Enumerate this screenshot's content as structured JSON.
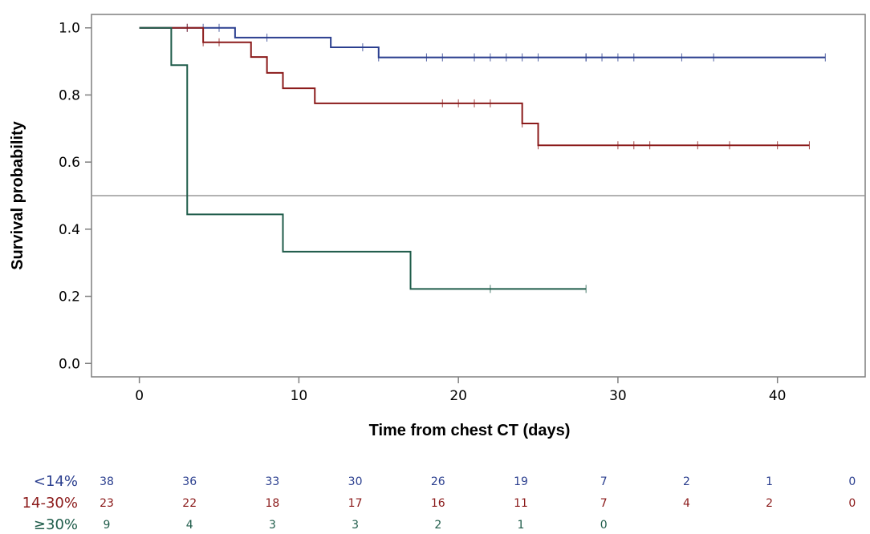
{
  "chart_data": {
    "type": "line",
    "subtype": "kaplan-meier",
    "xlabel": "Time from chest CT (days)",
    "ylabel": "Survival probability",
    "xlim": [
      -3,
      45.5
    ],
    "ylim": [
      -0.04,
      1.04
    ],
    "xticks": [
      0,
      10,
      20,
      30,
      40
    ],
    "xtick_labels": [
      "0",
      "10",
      "20",
      "30",
      "40"
    ],
    "yticks": [
      0.0,
      0.2,
      0.4,
      0.6,
      0.8,
      1.0
    ],
    "ytick_labels": [
      "0.0",
      "0.2",
      "0.4",
      "0.6",
      "0.8",
      "1.0"
    ],
    "reference_line_y": 0.5,
    "series": [
      {
        "name": "<14%",
        "color": "#2b3f8f",
        "steps": [
          [
            0,
            1.0
          ],
          [
            6,
            0.971
          ],
          [
            12,
            0.942
          ],
          [
            15,
            0.912
          ],
          [
            43,
            0.912
          ]
        ],
        "censored": [
          3,
          4,
          5,
          8,
          14,
          15,
          18,
          19,
          21,
          22,
          23,
          24,
          25,
          28,
          28,
          29,
          30,
          31,
          34,
          36,
          43
        ]
      },
      {
        "name": "14-30%",
        "color": "#8b1a1a",
        "steps": [
          [
            0,
            1.0
          ],
          [
            4,
            0.957
          ],
          [
            7,
            0.913
          ],
          [
            8,
            0.866
          ],
          [
            9,
            0.82
          ],
          [
            11,
            0.775
          ],
          [
            24,
            0.715
          ],
          [
            25,
            0.65
          ],
          [
            42,
            0.65
          ]
        ],
        "censored": [
          3,
          4,
          5,
          19,
          20,
          21,
          22,
          24,
          25,
          30,
          31,
          32,
          35,
          37,
          40,
          42
        ]
      },
      {
        "name": "≥30%",
        "color": "#1f5c4a",
        "steps": [
          [
            0,
            1.0
          ],
          [
            2,
            0.889
          ],
          [
            3,
            0.444
          ],
          [
            9,
            0.333
          ],
          [
            17,
            0.222
          ],
          [
            28,
            0.222
          ]
        ],
        "censored": [
          22,
          28
        ]
      }
    ],
    "risk_table": {
      "times": [
        0,
        5,
        10,
        15,
        20,
        25,
        30,
        35,
        40,
        45
      ],
      "rows": [
        {
          "label": "<14%",
          "color": "#2b3f8f",
          "counts": [
            "38",
            "36",
            "33",
            "30",
            "26",
            "19",
            "7",
            "2",
            "1",
            "0"
          ]
        },
        {
          "label": "14-30%",
          "color": "#8b1a1a",
          "counts": [
            "23",
            "22",
            "18",
            "17",
            "16",
            "11",
            "7",
            "4",
            "2",
            "0"
          ]
        },
        {
          "label": "≥30%",
          "color": "#1f5c4a",
          "counts": [
            "9",
            "4",
            "3",
            "3",
            "2",
            "1",
            "0"
          ]
        }
      ]
    }
  }
}
